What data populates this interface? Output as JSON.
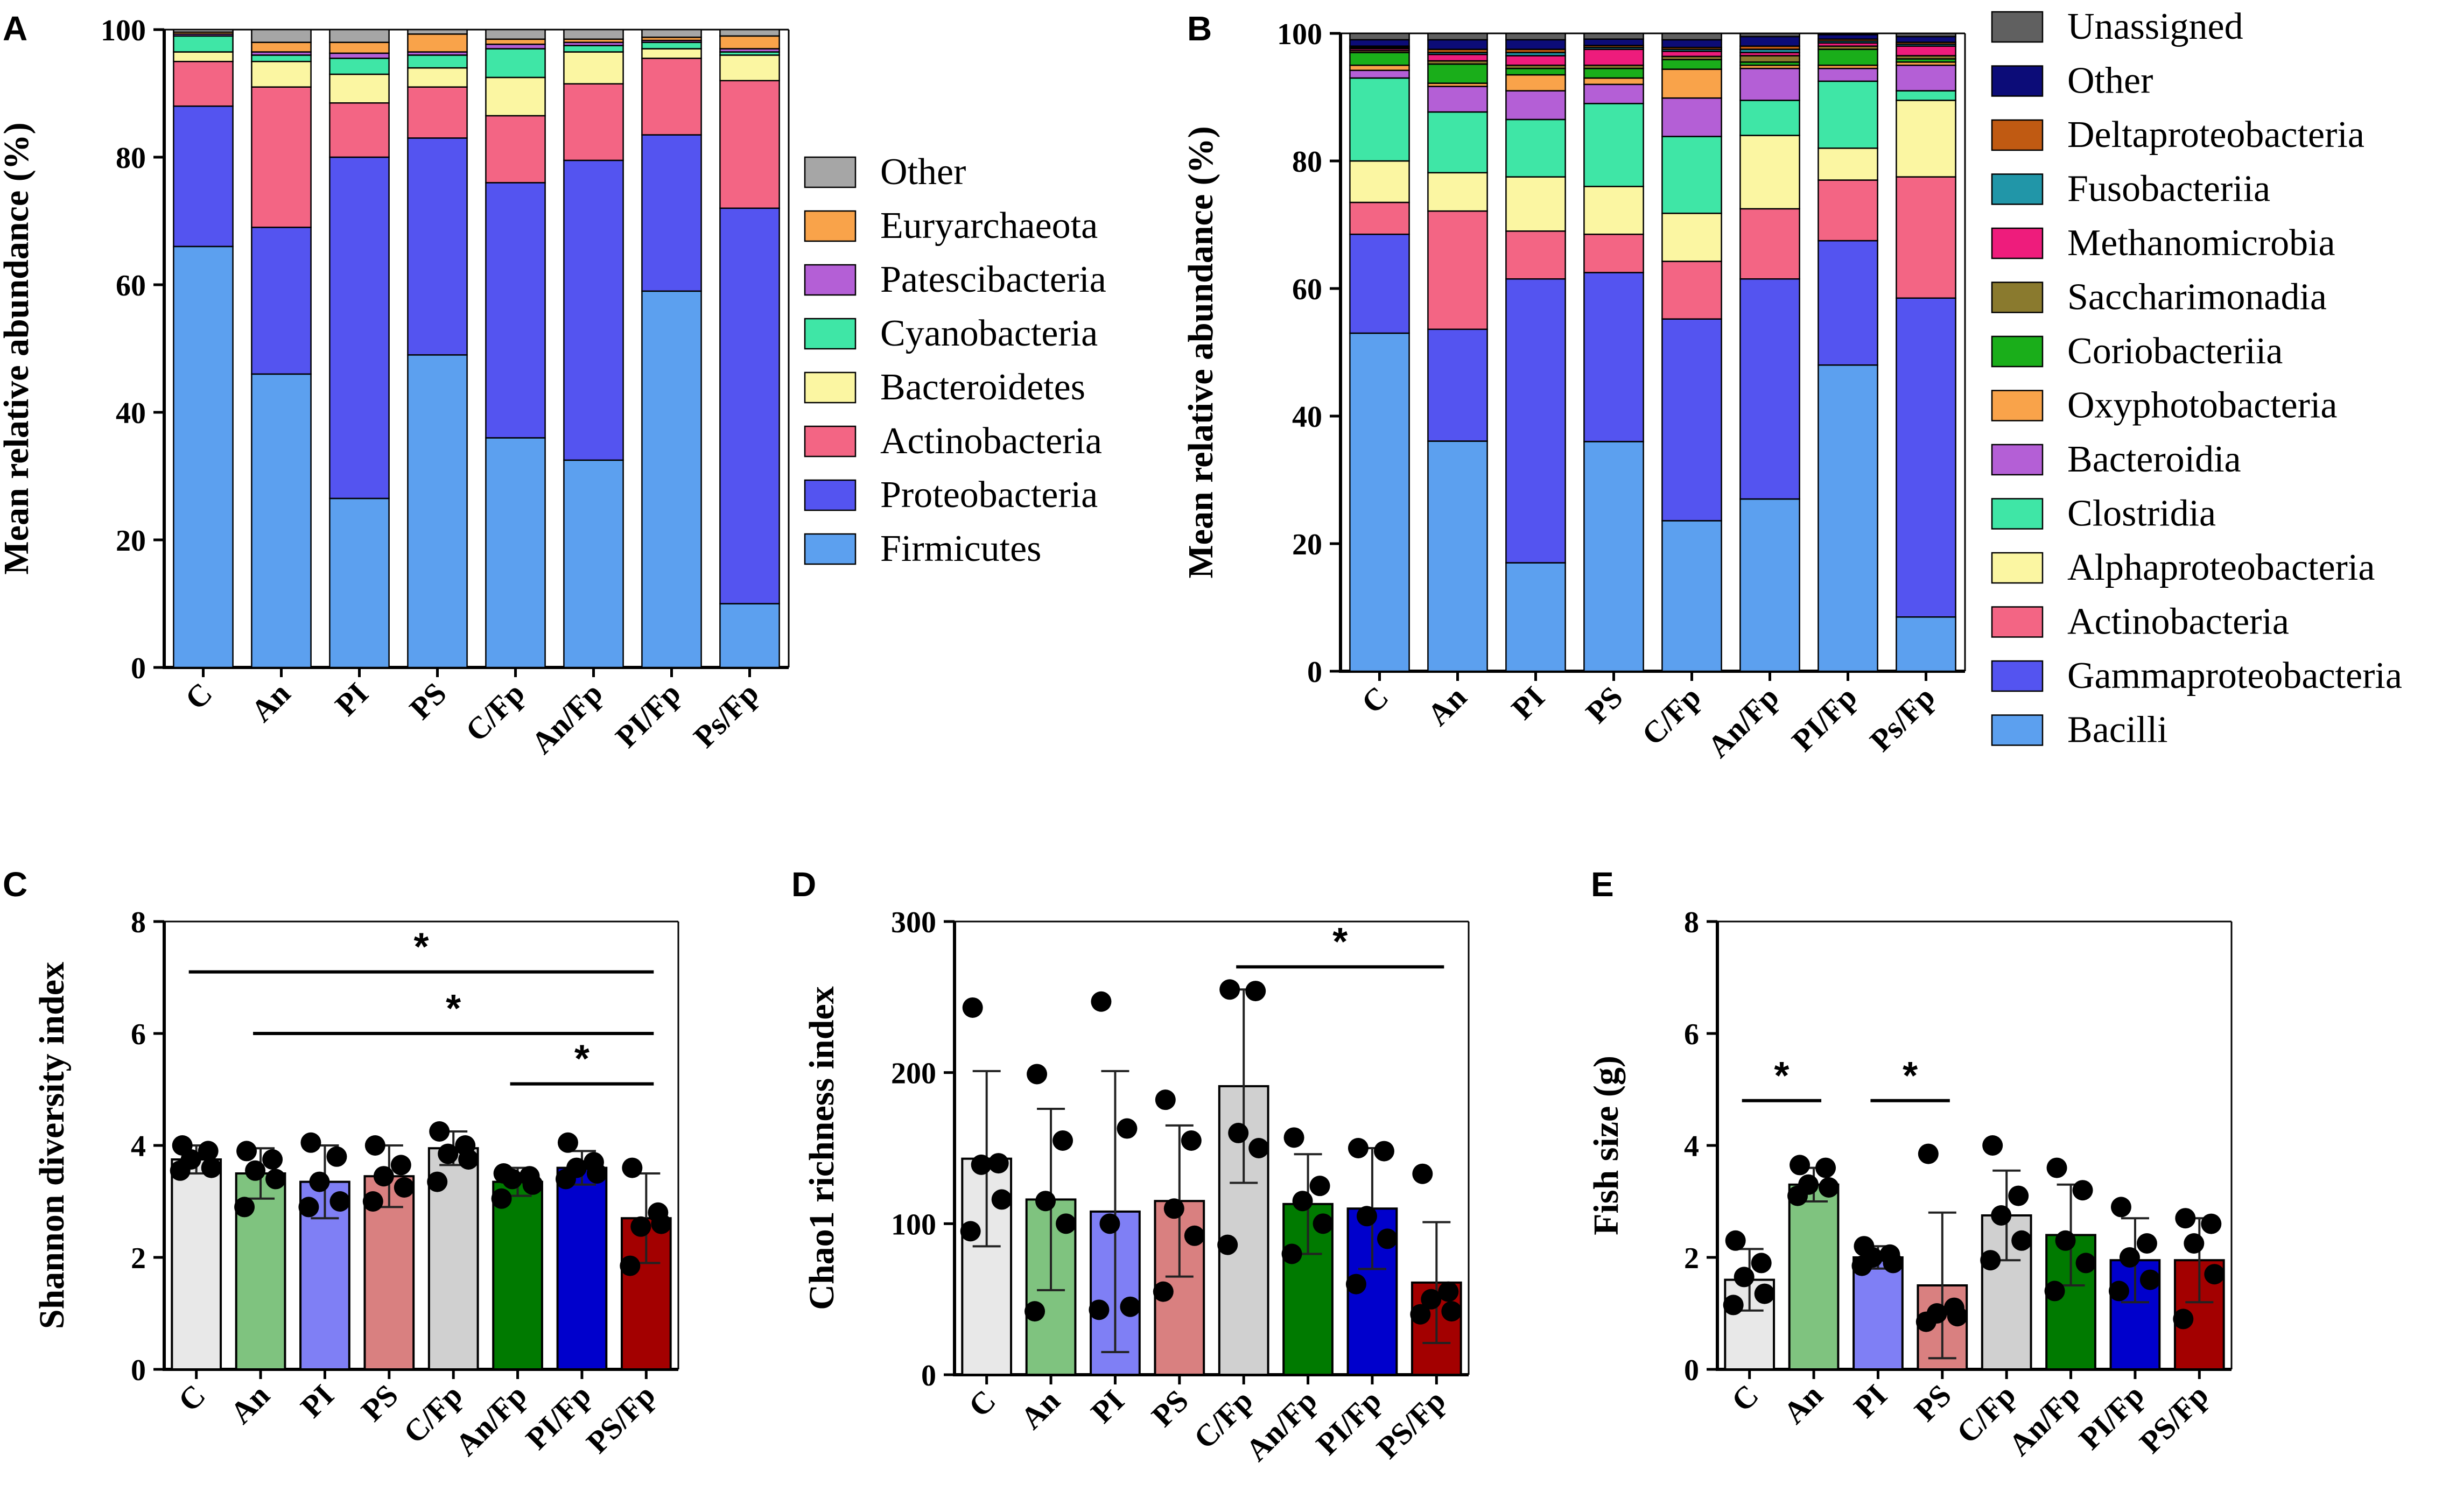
{
  "panel_labels": [
    "A",
    "B",
    "C",
    "D",
    "E"
  ],
  "groups": [
    "C",
    "An",
    "PI",
    "PS",
    "C/Fp",
    "An/Fp",
    "PI/Fp",
    "Ps/Fp"
  ],
  "colors": {
    "Firmicutes": "#5ca0ef",
    "Proteobacteria": "#5454f0",
    "Actinobacteria": "#f36584",
    "Bacteroidetes": "#fbf6a2",
    "Cyanobacteria": "#3fe6a6",
    "Patescibacteria": "#b45fd6",
    "Euryarchaeota": "#f9a34a",
    "Other": "#a6a6a6",
    "Bacilli": "#5ca0ef",
    "Gammaproteobacteria": "#5454f0",
    "Alphaproteobacteria": "#fbf6a2",
    "Clostridia": "#3fe6a6",
    "Bacteroidia": "#b45fd6",
    "Oxyphotobacteria": "#f9a34a",
    "Coriobacteriia": "#1aae1a",
    "Saccharimonadia": "#8a7a2e",
    "Methanomicrobia": "#ee1c7c",
    "Fusobacteriia": "#2196a8",
    "Deltaproteobacteria": "#c05a12",
    "OtherB": "#0c0c78",
    "Unassigned": "#606060"
  },
  "chart_data": [
    {
      "id": "A",
      "type": "bar",
      "stacked": true,
      "ylabel": "Mean relative abundance (%)",
      "ylim": [
        0,
        100
      ],
      "yticks": [
        0,
        20,
        40,
        60,
        80,
        100
      ],
      "categories": [
        "C",
        "An",
        "PI",
        "PS",
        "C/Fp",
        "An/Fp",
        "PI/Fp",
        "Ps/Fp"
      ],
      "series": [
        {
          "name": "Firmicutes",
          "values": [
            66,
            46,
            26.5,
            49,
            36,
            32.5,
            59,
            10
          ]
        },
        {
          "name": "Proteobacteria",
          "values": [
            22,
            23,
            53.5,
            34,
            40,
            47,
            24.5,
            62
          ]
        },
        {
          "name": "Actinobacteria",
          "values": [
            7,
            22,
            8.5,
            8,
            10.5,
            12,
            12,
            20
          ]
        },
        {
          "name": "Bacteroidetes",
          "values": [
            1.5,
            4,
            4.5,
            3,
            6,
            5,
            1.5,
            4
          ]
        },
        {
          "name": "Cyanobacteria",
          "values": [
            2.5,
            1,
            2.5,
            2,
            4.5,
            1,
            1,
            0.5
          ]
        },
        {
          "name": "Patescibacteria",
          "values": [
            0.3,
            0.5,
            0.8,
            0.5,
            0.7,
            0.5,
            0.3,
            0.5
          ]
        },
        {
          "name": "Euryarchaeota",
          "values": [
            0.3,
            1.5,
            1.7,
            2.8,
            0.8,
            0.5,
            0.5,
            2
          ]
        },
        {
          "name": "Other",
          "values": [
            0.4,
            2,
            2,
            0.7,
            1.5,
            1.5,
            1.2,
            1
          ]
        }
      ],
      "legend": [
        "Other",
        "Euryarchaeota",
        "Patescibacteria",
        "Cyanobacteria",
        "Bacteroidetes",
        "Actinobacteria",
        "Proteobacteria",
        "Firmicutes"
      ]
    },
    {
      "id": "B",
      "type": "bar",
      "stacked": true,
      "ylabel": "Mean relative abundance (%)",
      "ylim": [
        0,
        100
      ],
      "yticks": [
        0,
        20,
        40,
        60,
        80,
        100
      ],
      "categories": [
        "C",
        "An",
        "PI",
        "PS",
        "C/Fp",
        "An/Fp",
        "PI/Fp",
        "Ps/Fp"
      ],
      "series": [
        {
          "name": "Bacilli",
          "values": [
            53,
            36,
            17,
            36,
            23.5,
            27,
            48,
            8.5
          ]
        },
        {
          "name": "Gammaproteobacteria",
          "values": [
            15.5,
            17.5,
            44.5,
            26.5,
            31.5,
            34.5,
            19.5,
            50
          ]
        },
        {
          "name": "Actinobacteria",
          "values": [
            5,
            18.5,
            7.5,
            6,
            9,
            11,
            9.5,
            19
          ]
        },
        {
          "name": "Alphaproteobacteria",
          "values": [
            6.5,
            6,
            8.5,
            7.5,
            7.5,
            11.5,
            5,
            12
          ]
        },
        {
          "name": "Clostridia",
          "values": [
            13,
            9.5,
            9,
            13,
            12,
            5.5,
            10.5,
            1.5
          ]
        },
        {
          "name": "Bacteroidia",
          "values": [
            1.2,
            4,
            4.5,
            3,
            6,
            5,
            2,
            4
          ]
        },
        {
          "name": "Oxyphotobacteria",
          "values": [
            0.8,
            0.5,
            2.5,
            1,
            4.5,
            0.5,
            0.5,
            0.5
          ]
        },
        {
          "name": "Coriobacteriia",
          "values": [
            2,
            3,
            1,
            1.5,
            1.5,
            0.5,
            2.5,
            0.5
          ]
        },
        {
          "name": "Saccharimonadia",
          "values": [
            0.3,
            0.5,
            0.5,
            0.5,
            0.5,
            1,
            0.5,
            0.5
          ]
        },
        {
          "name": "Methanomicrobia",
          "values": [
            0.3,
            1,
            1.5,
            2.5,
            0.8,
            0.5,
            0.5,
            1.5
          ]
        },
        {
          "name": "Fusobacteriia",
          "values": [
            0.2,
            0.3,
            0.5,
            0.3,
            0.3,
            0.5,
            0.3,
            0.3
          ]
        },
        {
          "name": "Deltaproteobacteria",
          "values": [
            0.2,
            0.5,
            0.5,
            0.3,
            0.3,
            0.5,
            0.3,
            0.3
          ]
        },
        {
          "name": "Other",
          "values": [
            1,
            1.5,
            1.5,
            1,
            1.2,
            1.5,
            0.7,
            0.9
          ]
        },
        {
          "name": "Unassigned",
          "values": [
            1,
            1,
            1,
            0.9,
            1,
            0.5,
            0.2,
            0.5
          ]
        }
      ],
      "legend": [
        "Unassigned",
        "Other",
        "Deltaproteobacteria",
        "Fusobacteriia",
        "Methanomicrobia",
        "Saccharimonadia",
        "Coriobacteriia",
        "Oxyphotobacteria",
        "Bacteroidia",
        "Clostridia",
        "Alphaproteobacteria",
        "Actinobacteria",
        "Gammaproteobacteria",
        "Bacilli"
      ]
    },
    {
      "id": "C",
      "type": "bar",
      "ylabel": "Shannon diversity index",
      "ylim": [
        0,
        8
      ],
      "yticks": [
        0,
        2,
        4,
        6,
        8
      ],
      "categories": [
        "C",
        "An",
        "PI",
        "PS",
        "C/Fp",
        "An/Fp",
        "PI/Fp",
        "PS/Fp"
      ],
      "values": [
        3.75,
        3.5,
        3.35,
        3.45,
        3.95,
        3.35,
        3.6,
        2.7
      ],
      "errors": [
        0.25,
        0.45,
        0.65,
        0.55,
        0.3,
        0.25,
        0.3,
        0.8
      ],
      "points": [
        [
          4.0,
          3.9,
          3.75,
          3.6,
          3.55
        ],
        [
          3.9,
          3.75,
          3.55,
          3.4,
          2.9
        ],
        [
          4.05,
          3.8,
          3.35,
          3.0,
          2.9
        ],
        [
          4.0,
          3.65,
          3.45,
          3.25,
          3.0
        ],
        [
          4.25,
          4.0,
          3.85,
          3.75,
          3.35
        ],
        [
          3.5,
          3.45,
          3.4,
          3.3,
          3.05
        ],
        [
          4.05,
          3.7,
          3.6,
          3.5,
          3.4
        ],
        [
          3.6,
          2.8,
          2.55,
          2.6,
          1.85
        ]
      ],
      "colors": [
        "#e8e8e8",
        "#7fc37f",
        "#7f7ff5",
        "#d98080",
        "#d0d0d0",
        "#007a00",
        "#0000cc",
        "#a30000"
      ],
      "significance": [
        {
          "from": 0,
          "to": 7,
          "y": 7.1,
          "label": "*"
        },
        {
          "from": 1,
          "to": 7,
          "y": 6.0,
          "label": "*"
        },
        {
          "from": 5,
          "to": 7,
          "y": 5.1,
          "label": "*"
        }
      ]
    },
    {
      "id": "D",
      "type": "bar",
      "ylabel": "Chao1 richness index",
      "ylim": [
        0,
        300
      ],
      "yticks": [
        0,
        100,
        200,
        300
      ],
      "categories": [
        "C",
        "An",
        "PI",
        "PS",
        "C/Fp",
        "An/Fp",
        "PI/Fp",
        "PS/Fp"
      ],
      "values": [
        143,
        116,
        108,
        115,
        191,
        113,
        110,
        61
      ],
      "errors": [
        58,
        60,
        93,
        50,
        64,
        33,
        40,
        40
      ],
      "points": [
        [
          243,
          140,
          139,
          116,
          95
        ],
        [
          199,
          155,
          115,
          100,
          42
        ],
        [
          247,
          163,
          100,
          45,
          43
        ],
        [
          182,
          155,
          110,
          92,
          55
        ],
        [
          255,
          254,
          160,
          150,
          86
        ],
        [
          157,
          125,
          115,
          100,
          80
        ],
        [
          150,
          148,
          105,
          90,
          60
        ],
        [
          133,
          55,
          50,
          42,
          40
        ]
      ],
      "colors": [
        "#e8e8e8",
        "#7fc37f",
        "#7f7ff5",
        "#d98080",
        "#d0d0d0",
        "#007a00",
        "#0000cc",
        "#a30000"
      ],
      "significance": [
        {
          "from": 4,
          "to": 7,
          "y": 270,
          "label": "*"
        }
      ]
    },
    {
      "id": "E",
      "type": "bar",
      "ylabel": "Fish size (g)",
      "ylim": [
        0,
        8
      ],
      "yticks": [
        0,
        2,
        4,
        6,
        8
      ],
      "categories": [
        "C",
        "An",
        "PI",
        "PS",
        "C/Fp",
        "An/Fp",
        "PI/Fp",
        "PS/Fp"
      ],
      "values": [
        1.6,
        3.3,
        2.0,
        1.5,
        2.75,
        2.4,
        1.95,
        1.95
      ],
      "errors": [
        0.55,
        0.3,
        0.2,
        1.3,
        0.8,
        0.9,
        0.75,
        0.75
      ],
      "points": [
        [
          2.3,
          1.9,
          1.65,
          1.35,
          1.15
        ],
        [
          3.65,
          3.6,
          3.3,
          3.25,
          3.1
        ],
        [
          2.2,
          2.05,
          2.0,
          1.9,
          1.85
        ],
        [
          3.85,
          1.1,
          1.0,
          0.95,
          0.85
        ],
        [
          4.0,
          3.1,
          2.75,
          2.3,
          1.95
        ],
        [
          3.6,
          3.2,
          2.3,
          1.9,
          1.4
        ],
        [
          2.9,
          2.25,
          2.0,
          1.6,
          1.4
        ],
        [
          2.7,
          2.6,
          2.25,
          1.7,
          0.9
        ]
      ],
      "colors": [
        "#e8e8e8",
        "#7fc37f",
        "#7f7ff5",
        "#d98080",
        "#d0d0d0",
        "#007a00",
        "#0000cc",
        "#a30000"
      ],
      "significance": [
        {
          "from": 0,
          "to": 1,
          "y": 4.8,
          "label": "*"
        },
        {
          "from": 2,
          "to": 3,
          "y": 4.8,
          "label": "*"
        }
      ]
    }
  ]
}
